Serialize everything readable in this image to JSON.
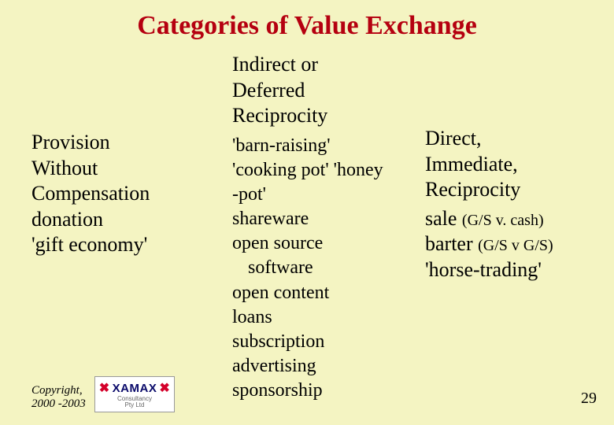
{
  "background_color": "#f4f4c2",
  "title_color": "#b50010",
  "text_color": "#000000",
  "logo_accent": "#d4002a",
  "logo_dark": "#0a0a6a",
  "title": "Categories of Value Exchange",
  "left": {
    "heading_l1": "Provision",
    "heading_l2": "Without",
    "heading_l3": "Compensation",
    "item1": "donation",
    "item2": "'gift economy'"
  },
  "middle": {
    "heading_l1": "Indirect or",
    "heading_l2": "Deferred",
    "heading_l3": "Reciprocity",
    "item1": "'barn-raising'",
    "item2a": "'cooking pot' 'honey",
    "item2b": "-pot'",
    "item3": "shareware",
    "item4a": "open source",
    "item4b": "software",
    "item5": "open content",
    "item6": "loans",
    "item7": "subscription",
    "item8": "advertising",
    "item9": "sponsorship"
  },
  "right": {
    "heading_l1": "Direct,",
    "heading_l2": "Immediate,",
    "heading_l3": "Reciprocity",
    "item1_main": "sale ",
    "item1_paren": "(G/S v. cash)",
    "item2_main": "barter ",
    "item2_paren": "(G/S v G/S)",
    "item3": "'horse-trading'"
  },
  "copyright_l1": "Copyright,",
  "copyright_l2": "2000 -2003",
  "logo_text": "XAMAX",
  "logo_sub1": "Consultancy",
  "logo_sub2": "Pty Ltd",
  "page_number": "29"
}
